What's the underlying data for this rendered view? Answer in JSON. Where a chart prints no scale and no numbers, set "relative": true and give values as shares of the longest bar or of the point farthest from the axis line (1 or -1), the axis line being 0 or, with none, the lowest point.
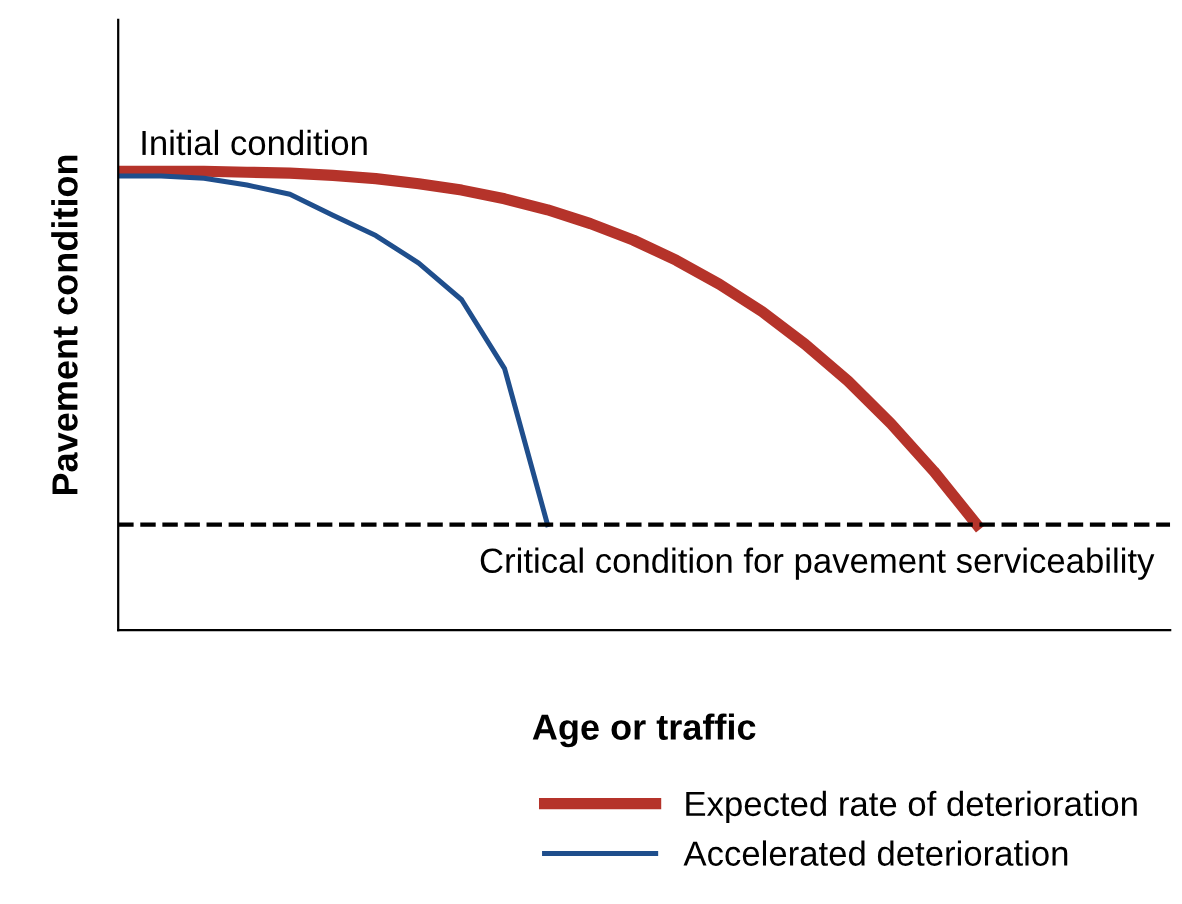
{
  "chart_data": {
    "type": "line",
    "relative": true,
    "xlabel": "Age or traffic",
    "ylabel": "Pavement condition",
    "categories": [
      null,
      null,
      null,
      null,
      null,
      null,
      null,
      null,
      null,
      null,
      null,
      null,
      null,
      null,
      null,
      null,
      null,
      null,
      null,
      null,
      null
    ],
    "series": [
      {
        "name": "Expected rate of deterioration",
        "color": "#b5332a",
        "values": [
          1.0,
          1.0,
          1.0,
          0.998,
          0.996,
          0.991,
          0.984,
          0.973,
          0.959,
          0.94,
          0.916,
          0.886,
          0.85,
          0.806,
          0.754,
          0.694,
          0.623,
          0.543,
          0.45,
          0.346,
          0.23
        ]
      },
      {
        "name": "Accelerated deterioration",
        "color": "#1f4e8c",
        "values": [
          0.99,
          0.99,
          0.985,
          0.97,
          0.95,
          0.904,
          0.86,
          0.8,
          0.72,
          0.57,
          0.23,
          null,
          null,
          null,
          null,
          null,
          null,
          null,
          null,
          null,
          null
        ]
      }
    ],
    "ref_lines": [
      {
        "axis": "y",
        "value": 0.23,
        "label": "Critical condition for pavement serviceability",
        "color": "#000000",
        "line_style": "dashed"
      }
    ],
    "annotations": [
      "Initial condition"
    ],
    "legend": "bottom right",
    "marker": "none",
    "line_style": "solid"
  }
}
